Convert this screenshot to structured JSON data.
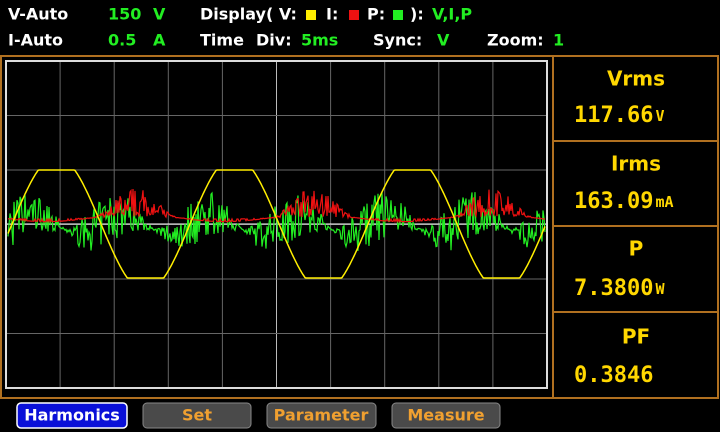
{
  "status": {
    "row1": {
      "v_range_label": "V-Auto",
      "v_range_value": "150",
      "v_range_unit": "V",
      "display_label": "Display( V:",
      "display_i": "I:",
      "display_p": "P:",
      "display_close": "):",
      "display_value": "V,I,P"
    },
    "row2": {
      "i_range_label": "I-Auto",
      "i_range_value": "0.5",
      "i_range_unit": "A",
      "time_label": "Time",
      "div_label": "Div:",
      "div_value": "5ms",
      "sync_label": "Sync:",
      "sync_value": "V",
      "zoom_label": "Zoom:",
      "zoom_value": "1"
    }
  },
  "readings": [
    {
      "label": "Vrms",
      "value": "117.66",
      "unit": "V"
    },
    {
      "label": "Irms",
      "value": "163.09",
      "unit": "mA"
    },
    {
      "label": "P",
      "value": "7.3800",
      "unit": "W"
    },
    {
      "label": "PF",
      "value": "0.3846"
    }
  ],
  "buttons": [
    "Harmonics",
    "Set",
    "Parameter",
    "Measure"
  ]
}
